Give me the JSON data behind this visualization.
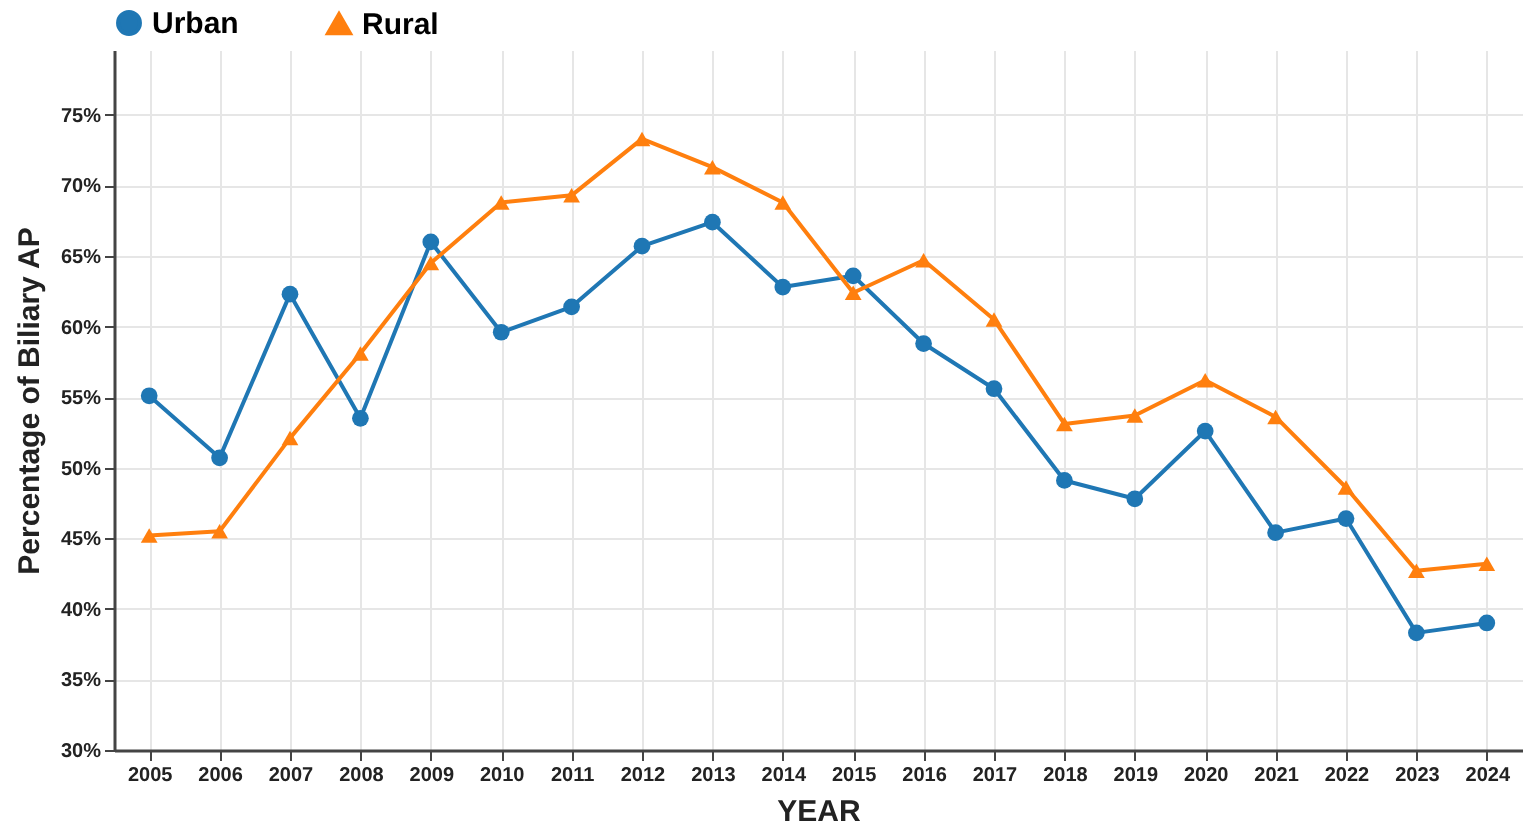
{
  "chart_data": {
    "type": "line",
    "xlabel": "YEAR",
    "ylabel": "Percentage of Biliary AP",
    "categories": [
      "2005",
      "2006",
      "2007",
      "2008",
      "2009",
      "2010",
      "2011",
      "2012",
      "2013",
      "2014",
      "2015",
      "2016",
      "2017",
      "2018",
      "2019",
      "2020",
      "2021",
      "2022",
      "2023",
      "2024"
    ],
    "series": [
      {
        "name": "Urban",
        "color": "#1f77b4",
        "marker": "circle",
        "values": [
          55.1,
          50.7,
          62.3,
          53.5,
          66.0,
          59.6,
          61.4,
          65.7,
          67.4,
          62.8,
          63.6,
          58.8,
          55.6,
          49.1,
          47.8,
          52.6,
          45.4,
          46.4,
          38.3,
          39.0
        ]
      },
      {
        "name": "Rural",
        "color": "#ff7f0e",
        "marker": "triangle",
        "values": [
          45.2,
          45.5,
          52.1,
          58.1,
          64.5,
          68.8,
          69.3,
          73.3,
          71.3,
          68.8,
          62.4,
          64.7,
          60.5,
          53.1,
          53.7,
          56.2,
          53.6,
          48.6,
          42.7,
          43.2
        ]
      }
    ],
    "ylim": [
      30,
      79.6
    ],
    "yticks": [
      {
        "value": 30,
        "label": "30%"
      },
      {
        "value": 35,
        "label": "35%"
      },
      {
        "value": 40,
        "label": "40%"
      },
      {
        "value": 45,
        "label": "45%"
      },
      {
        "value": 50,
        "label": "50%"
      },
      {
        "value": 55,
        "label": "55%"
      },
      {
        "value": 60,
        "label": "60%"
      },
      {
        "value": 65,
        "label": "65%"
      },
      {
        "value": 70,
        "label": "70%"
      },
      {
        "value": 75,
        "label": "75%"
      }
    ],
    "grid": true,
    "legend": "top",
    "line_style": "solid"
  }
}
